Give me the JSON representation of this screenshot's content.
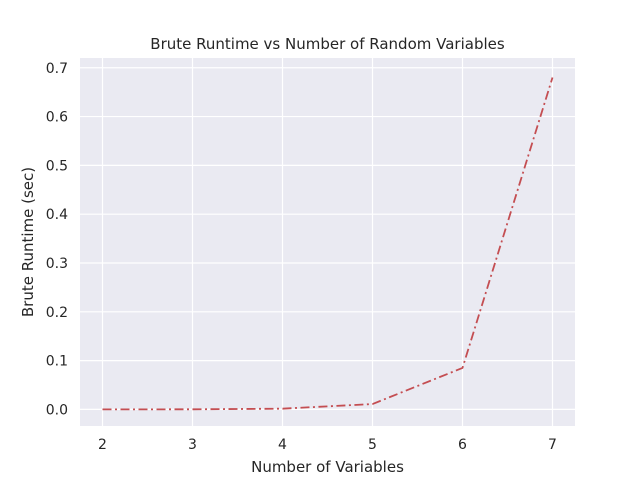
{
  "chart_data": {
    "type": "line",
    "title": "Brute Runtime vs Number of Random Variables",
    "xlabel": "Number of Variables",
    "ylabel": "Brute Runtime (sec)",
    "x": [
      2,
      3,
      4,
      5,
      6,
      7
    ],
    "xticks": [
      "2",
      "3",
      "4",
      "5",
      "6",
      "7"
    ],
    "yticks": [
      "0.0",
      "0.1",
      "0.2",
      "0.3",
      "0.4",
      "0.5",
      "0.6",
      "0.7"
    ],
    "xlim": [
      1.75,
      7.25
    ],
    "ylim": [
      -0.034,
      0.72
    ],
    "grid": true,
    "series": [
      {
        "values": [
          0.0,
          0.0002,
          0.0015,
          0.011,
          0.085,
          0.68
        ],
        "color": "#c44e52",
        "line_style": "dash-dot"
      }
    ],
    "colors": {
      "plot_background": "#eaeaf2",
      "grid": "#ffffff",
      "text": "#262626"
    }
  }
}
